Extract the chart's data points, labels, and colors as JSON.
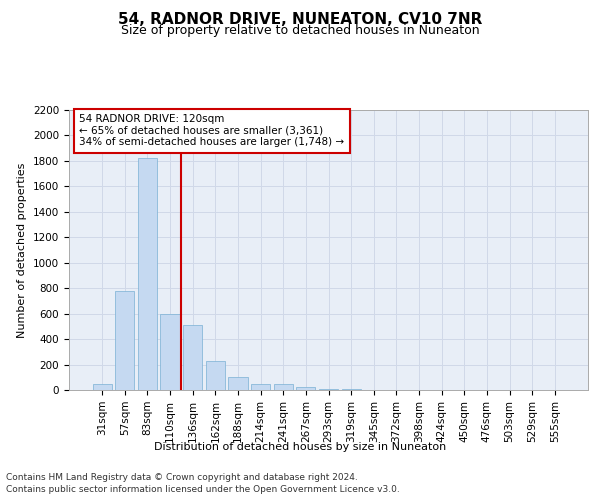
{
  "title": "54, RADNOR DRIVE, NUNEATON, CV10 7NR",
  "subtitle": "Size of property relative to detached houses in Nuneaton",
  "xlabel": "Distribution of detached houses by size in Nuneaton",
  "ylabel": "Number of detached properties",
  "categories": [
    "31sqm",
    "57sqm",
    "83sqm",
    "110sqm",
    "136sqm",
    "162sqm",
    "188sqm",
    "214sqm",
    "241sqm",
    "267sqm",
    "293sqm",
    "319sqm",
    "345sqm",
    "372sqm",
    "398sqm",
    "424sqm",
    "450sqm",
    "476sqm",
    "503sqm",
    "529sqm",
    "555sqm"
  ],
  "values": [
    50,
    775,
    1825,
    600,
    510,
    225,
    100,
    50,
    45,
    25,
    10,
    4,
    2,
    1,
    1,
    0,
    0,
    0,
    0,
    0,
    0
  ],
  "bar_color": "#c5d9f1",
  "bar_edge_color": "#7ab0d4",
  "highlight_line_color": "#cc0000",
  "annotation_text": "54 RADNOR DRIVE: 120sqm\n← 65% of detached houses are smaller (3,361)\n34% of semi-detached houses are larger (1,748) →",
  "annotation_box_color": "#ffffff",
  "annotation_box_edge_color": "#cc0000",
  "ylim": [
    0,
    2200
  ],
  "yticks": [
    0,
    200,
    400,
    600,
    800,
    1000,
    1200,
    1400,
    1600,
    1800,
    2000,
    2200
  ],
  "grid_color": "#d0d8e8",
  "background_color": "#e8eef7",
  "footer_line1": "Contains HM Land Registry data © Crown copyright and database right 2024.",
  "footer_line2": "Contains public sector information licensed under the Open Government Licence v3.0.",
  "title_fontsize": 11,
  "subtitle_fontsize": 9,
  "axis_label_fontsize": 8,
  "tick_fontsize": 7.5,
  "footer_fontsize": 6.5
}
